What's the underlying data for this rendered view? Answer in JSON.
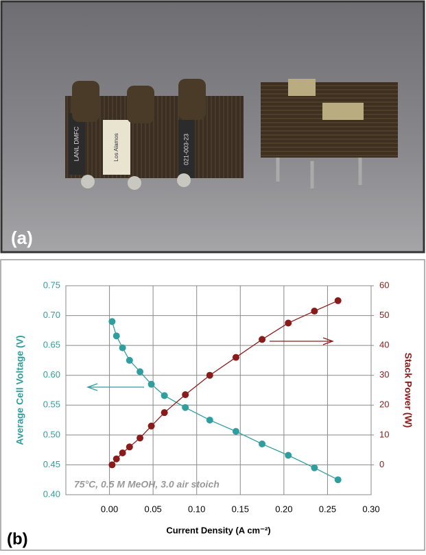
{
  "photo": {
    "label": "(a)",
    "texts": [
      "LANL DMFC",
      "Los Alamos",
      "021-003-23"
    ]
  },
  "chart_data": {
    "type": "line",
    "panel_label": "(b)",
    "x_label": "Current Density (A cm⁻²)",
    "y_label": "Average Cell Voltage (V)",
    "y2_label": "Stack Power (W)",
    "annotation": "75°C, 0.5 M MeOH, 3.0 air stoich",
    "x": [
      0.003,
      0.008,
      0.015,
      0.023,
      0.035,
      0.048,
      0.063,
      0.087,
      0.115,
      0.145,
      0.175,
      0.205,
      0.235,
      0.262
    ],
    "series": [
      {
        "color": "#2e9e9e",
        "values": [
          0.69,
          0.666,
          0.646,
          0.625,
          0.606,
          0.585,
          0.566,
          0.546,
          0.525,
          0.506,
          0.485,
          0.466,
          0.445,
          0.425
        ]
      },
      {
        "color": "#8b1a1a",
        "axis": "y2",
        "values": [
          0,
          2,
          4,
          6,
          9,
          13,
          17.5,
          23.5,
          30,
          36,
          42,
          47.5,
          51.5,
          55
        ]
      }
    ],
    "xlim": [
      -0.05,
      0.3
    ],
    "xticks": [
      {
        "value": 0,
        "label": "0.00"
      },
      {
        "value": 0.05,
        "label": "0.05"
      },
      {
        "value": 0.1,
        "label": "0.10"
      },
      {
        "value": 0.15,
        "label": "0.15"
      },
      {
        "value": 0.2,
        "label": "0.20"
      },
      {
        "value": 0.25,
        "label": "0.25"
      },
      {
        "value": 0.3,
        "label": "0.30"
      }
    ],
    "ylim": [
      0.4,
      0.75
    ],
    "yticks": [
      {
        "value": 0.4,
        "label": "0.40"
      },
      {
        "value": 0.45,
        "label": "0.45"
      },
      {
        "value": 0.5,
        "label": "0.50"
      },
      {
        "value": 0.55,
        "label": "0.55"
      },
      {
        "value": 0.6,
        "label": "0.60"
      },
      {
        "value": 0.65,
        "label": "0.65"
      },
      {
        "value": 0.7,
        "label": "0.70"
      },
      {
        "value": 0.75,
        "label": "0.75"
      }
    ],
    "y2lim": [
      -10,
      60
    ],
    "y2ticks": [
      0,
      10,
      20,
      30,
      40,
      50,
      60
    ],
    "grid": true
  }
}
